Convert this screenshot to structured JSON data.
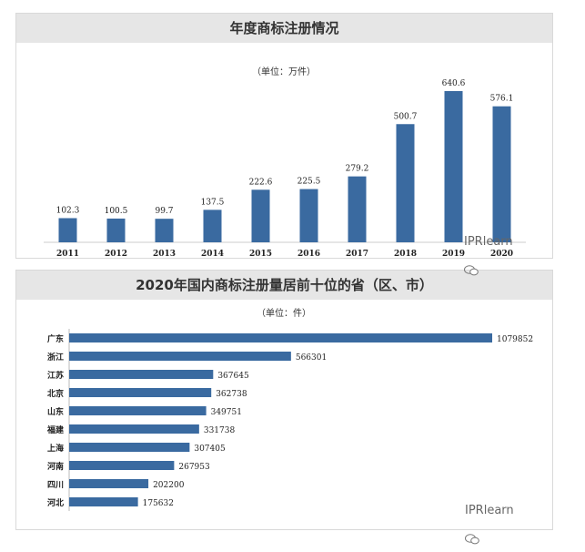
{
  "watermark": "IPRlearn",
  "colors": {
    "bar": "#3a6aa0",
    "header_bg": "#e6e6e6"
  },
  "chart_data": [
    {
      "type": "bar",
      "title": "年度商标注册情况",
      "unit": "（单位：万件）",
      "categories": [
        "2011",
        "2012",
        "2013",
        "2014",
        "2015",
        "2016",
        "2017",
        "2018",
        "2019",
        "2020"
      ],
      "values": [
        102.3,
        100.5,
        99.7,
        137.5,
        222.6,
        225.5,
        279.2,
        500.7,
        640.6,
        576.1
      ],
      "value_labels": [
        "102.3",
        "100.5",
        "99.7",
        "137.5",
        "222.6",
        "225.5",
        "279.2",
        "500.7",
        "640.6",
        "576.1"
      ],
      "ylim": [
        0,
        640.6
      ]
    },
    {
      "type": "bar",
      "orientation": "horizontal",
      "title": "2020年国内商标注册量居前十位的省（区、市）",
      "unit": "（单位：件）",
      "categories": [
        "广东",
        "浙江",
        "江苏",
        "北京",
        "山东",
        "福建",
        "上海",
        "河南",
        "四川",
        "河北"
      ],
      "values": [
        1079852,
        566301,
        367645,
        362738,
        349751,
        331738,
        307405,
        267953,
        202200,
        175632
      ],
      "value_labels": [
        "1079852",
        "566301",
        "367645",
        "362738",
        "349751",
        "331738",
        "307405",
        "267953",
        "202200",
        "175632"
      ],
      "xlim": [
        0,
        1079852
      ]
    }
  ]
}
